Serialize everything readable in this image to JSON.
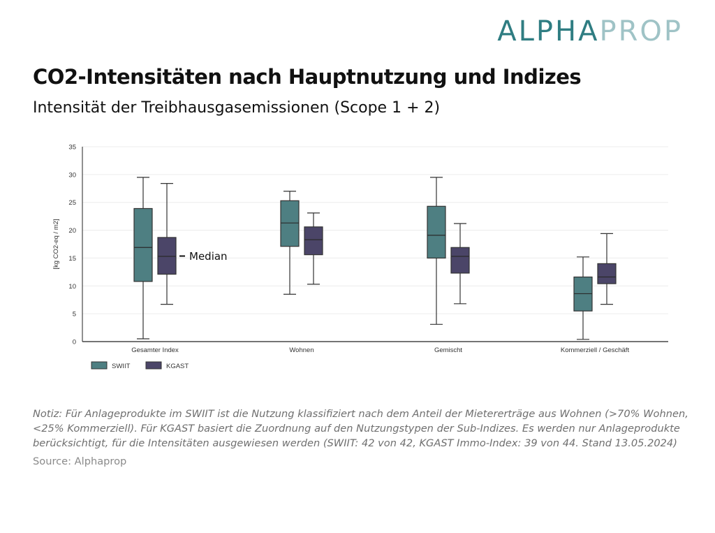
{
  "brand": {
    "logo_part1": "ALPHA",
    "logo_part2": "PROP",
    "color_dark": "#2f7d82",
    "color_light": "#9fc3c6"
  },
  "header": {
    "title": "CO2-Intensitäten nach Hauptnutzung und Indizes",
    "subtitle": "Intensität der Treibhausgasemissionen (Scope 1 + 2)"
  },
  "footer": {
    "note": "Notiz: Für Anlageprodukte im SWIIT ist die Nutzung klassifiziert nach dem Anteil der Mietererträge aus Wohnen (>70% Wohnen, <25% Kommerziell). Für KGAST basiert die Zuordnung auf den Nutzungstypen der Sub-Indizes. Es werden nur Anlageprodukte berücksichtigt, für die Intensitäten ausgewiesen werden (SWIIT:  42 von 42, KGAST Immo-Index: 39 von 44. Stand 13.05.2024)",
    "source": "Source: Alphaprop"
  },
  "chart_data": {
    "type": "boxplot",
    "ylabel": "[kg CO2-eq / m2]",
    "ylim": [
      0,
      35
    ],
    "yticks": [
      0,
      5,
      10,
      15,
      20,
      25,
      30,
      35
    ],
    "grid": "horizontal",
    "legend_position": "bottom-left",
    "categories": [
      "Gesamter Index",
      "Wohnen",
      "Gemischt",
      "Kommerziell / Geschäft"
    ],
    "annotation": "Median",
    "series": [
      {
        "name": "SWIIT",
        "color": "#4e7f82",
        "boxes": [
          {
            "min": 0.5,
            "q1": 10.8,
            "median": 16.9,
            "q3": 23.9,
            "max": 29.5
          },
          {
            "min": 8.5,
            "q1": 17.1,
            "median": 21.3,
            "q3": 25.3,
            "max": 27.0
          },
          {
            "min": 3.1,
            "q1": 15.0,
            "median": 19.1,
            "q3": 24.3,
            "max": 29.5
          },
          {
            "min": 0.4,
            "q1": 5.5,
            "median": 8.6,
            "q3": 11.6,
            "max": 15.2
          }
        ]
      },
      {
        "name": "KGAST",
        "color": "#4b4568",
        "boxes": [
          {
            "min": 6.7,
            "q1": 12.1,
            "median": 15.3,
            "q3": 18.7,
            "max": 28.4
          },
          {
            "min": 10.3,
            "q1": 15.6,
            "median": 18.3,
            "q3": 20.6,
            "max": 23.1
          },
          {
            "min": 6.8,
            "q1": 12.3,
            "median": 15.3,
            "q3": 16.9,
            "max": 21.2
          },
          {
            "min": 6.7,
            "q1": 10.4,
            "median": 11.6,
            "q3": 14.0,
            "max": 19.4
          }
        ]
      }
    ]
  }
}
